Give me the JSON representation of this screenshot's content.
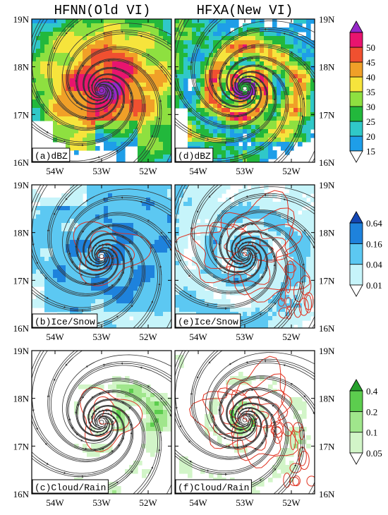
{
  "figure": {
    "column_titles": [
      "HFNN(Old VI)",
      "HFXA(New VI)"
    ],
    "lon_ticks": [
      "54W",
      "53W",
      "52W"
    ],
    "lat_ticks": [
      "19N",
      "18N",
      "17N",
      "16N"
    ]
  },
  "chart_data": [
    {
      "type": "heatmap",
      "panel_label": "(a)dBZ",
      "field": "reflectivity",
      "extent": {
        "lon": [
          -54.5,
          -51.5
        ],
        "lat": [
          16,
          19
        ]
      },
      "center": {
        "lon": -53.0,
        "lat": 17.5
      },
      "colorbar_group": "dbz",
      "style": "broad"
    },
    {
      "type": "heatmap",
      "panel_label": "(d)dBZ",
      "field": "reflectivity",
      "extent": {
        "lon": [
          -54.5,
          -51.5
        ],
        "lat": [
          16,
          19
        ]
      },
      "center": {
        "lon": -53.0,
        "lat": 17.55
      },
      "colorbar_group": "dbz",
      "style": "banded"
    },
    {
      "type": "heatmap",
      "panel_label": "(b)Ice/Snow",
      "field": "ice_snow",
      "extent": {
        "lon": [
          -54.5,
          -51.5
        ],
        "lat": [
          16,
          19
        ]
      },
      "center": {
        "lon": -53.0,
        "lat": 17.5
      },
      "colorbar_group": "ice",
      "style": "broad"
    },
    {
      "type": "heatmap",
      "panel_label": "(e)Ice/Snow",
      "field": "ice_snow",
      "extent": {
        "lon": [
          -54.5,
          -51.5
        ],
        "lat": [
          16,
          19
        ]
      },
      "center": {
        "lon": -53.0,
        "lat": 17.55
      },
      "colorbar_group": "ice",
      "style": "banded"
    },
    {
      "type": "heatmap",
      "panel_label": "(c)Cloud/Rain",
      "field": "cloud_rain",
      "extent": {
        "lon": [
          -54.5,
          -51.5
        ],
        "lat": [
          16,
          19
        ]
      },
      "center": {
        "lon": -53.0,
        "lat": 17.5
      },
      "colorbar_group": "cloud",
      "style": "broad"
    },
    {
      "type": "heatmap",
      "panel_label": "(f)Cloud/Rain",
      "field": "cloud_rain",
      "extent": {
        "lon": [
          -54.5,
          -51.5
        ],
        "lat": [
          16,
          19
        ]
      },
      "center": {
        "lon": -53.0,
        "lat": 17.55
      },
      "colorbar_group": "cloud",
      "style": "banded"
    }
  ],
  "colorbars": {
    "dbz": {
      "labels": [
        "15",
        "20",
        "25",
        "30",
        "35",
        "40",
        "45",
        "50"
      ],
      "colors": [
        "#ffffff",
        "#1e9ee8",
        "#30c8c8",
        "#22b83c",
        "#8ee040",
        "#f6e43c",
        "#f0a028",
        "#f05030",
        "#e8146e",
        "#9628c8"
      ]
    },
    "ice": {
      "labels": [
        "0.01",
        "0.04",
        "0.16",
        "0.64"
      ],
      "colors": [
        "#ffffff",
        "#c6f4fa",
        "#5cc8f2",
        "#1e82dc",
        "#1447b4"
      ]
    },
    "cloud": {
      "labels": [
        "0.05",
        "0.1",
        "0.2",
        "0.4"
      ],
      "colors": [
        "#ffffff",
        "#d2f5c8",
        "#a0e68c",
        "#5ccd4e",
        "#26a02c"
      ]
    }
  },
  "colors": {
    "streamline": "#333333",
    "contour": "#e0301e",
    "frame": "#000000"
  }
}
